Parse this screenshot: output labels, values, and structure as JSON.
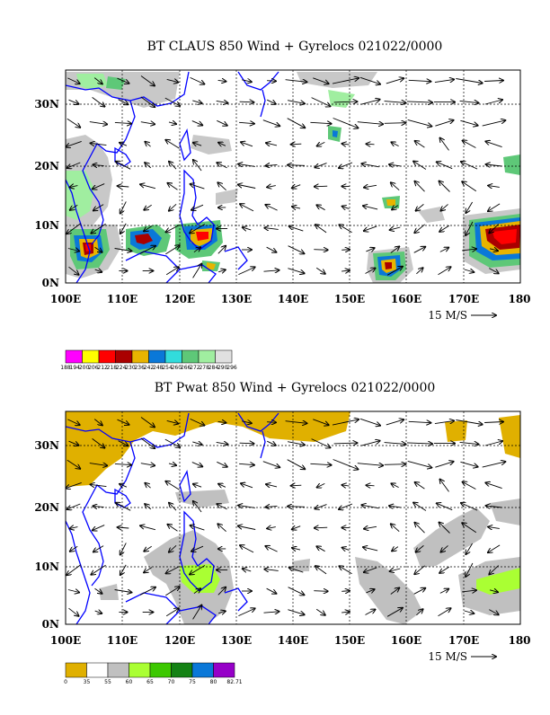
{
  "panels": [
    {
      "title": "BT CLAUS 850 Wind + Gyrelocs 021022/0000",
      "xticks": [
        "100E",
        "110E",
        "120E",
        "130E",
        "140E",
        "150E",
        "160E",
        "170E",
        "180"
      ],
      "yticks": [
        "0N",
        "10N",
        "20N",
        "30N"
      ],
      "ref_label": "15 M/S",
      "colorbar": {
        "colors": [
          "#ff00ff",
          "#ffff00",
          "#ff0000",
          "#aa0000",
          "#e8b400",
          "#0a78d8",
          "#32dcdc",
          "#5ec878",
          "#a0eea0",
          "#e0e0e0"
        ],
        "labels": [
          "188",
          "194",
          "200",
          "206",
          "212",
          "218",
          "224",
          "230",
          "236",
          "242",
          "248",
          "254",
          "260",
          "266",
          "272",
          "278",
          "284",
          "290",
          "296"
        ]
      }
    },
    {
      "title": "BT Pwat 850 Wind + Gyrelocs 021022/0000",
      "xticks": [
        "100E",
        "110E",
        "120E",
        "130E",
        "140E",
        "150E",
        "160E",
        "170E",
        "180"
      ],
      "yticks": [
        "0N",
        "10N",
        "20N",
        "30N"
      ],
      "ref_label": "15 M/S",
      "colorbar": {
        "colors": [
          "#e0b000",
          "#ffffff",
          "#c0c0c0",
          "#aaff33",
          "#3cc800",
          "#148214",
          "#0a78d8",
          "#9600c8"
        ],
        "labels": [
          "0",
          "35",
          "55",
          "60",
          "65",
          "70",
          "75",
          "80",
          "82.71"
        ]
      }
    }
  ],
  "chart_data": [
    {
      "type": "heatmap",
      "title": "BT CLAUS 850 Wind + Gyrelocs 021022/0000",
      "x_range": [
        100,
        180
      ],
      "y_range": [
        0,
        36
      ],
      "x_ticks": [
        100,
        110,
        120,
        130,
        140,
        150,
        160,
        170,
        180
      ],
      "y_ticks": [
        0,
        10,
        20,
        30
      ],
      "grid": true,
      "field": "cloud top brightness temperature with 850 hPa wind vectors",
      "reference_vector": "15 M/S"
    },
    {
      "type": "heatmap",
      "title": "BT Pwat 850 Wind + Gyrelocs 021022/0000",
      "x_range": [
        100,
        180
      ],
      "y_range": [
        0,
        36
      ],
      "x_ticks": [
        100,
        110,
        120,
        130,
        140,
        150,
        160,
        170,
        180
      ],
      "y_ticks": [
        0,
        10,
        20,
        30
      ],
      "grid": true,
      "field": "precipitable water with 850 hPa wind vectors",
      "reference_vector": "15 M/S"
    }
  ]
}
